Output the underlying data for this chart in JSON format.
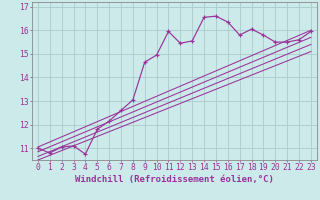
{
  "background_color": "#cceaea",
  "line_color": "#993399",
  "grid_color": "#aacccc",
  "xlabel": "Windchill (Refroidissement éolien,°C)",
  "xlabel_fontsize": 6.5,
  "tick_fontsize": 5.8,
  "xlim": [
    -0.5,
    23.5
  ],
  "ylim": [
    10.5,
    17.2
  ],
  "yticks": [
    11,
    12,
    13,
    14,
    15,
    16,
    17
  ],
  "xticks": [
    0,
    1,
    2,
    3,
    4,
    5,
    6,
    7,
    8,
    9,
    10,
    11,
    12,
    13,
    14,
    15,
    16,
    17,
    18,
    19,
    20,
    21,
    22,
    23
  ],
  "main_line_x": [
    0,
    1,
    2,
    3,
    4,
    5,
    6,
    7,
    8,
    9,
    10,
    11,
    12,
    13,
    14,
    15,
    16,
    17,
    18,
    19,
    20,
    21,
    22,
    23
  ],
  "main_line_y": [
    11.0,
    10.8,
    11.05,
    11.1,
    10.75,
    11.8,
    12.15,
    12.6,
    13.05,
    14.65,
    14.95,
    15.95,
    15.45,
    15.55,
    16.55,
    16.6,
    16.35,
    15.8,
    16.05,
    15.8,
    15.5,
    15.5,
    15.6,
    15.95
  ],
  "diag_lines": [
    {
      "x": [
        0,
        23
      ],
      "y": [
        11.05,
        16.0
      ]
    },
    {
      "x": [
        0,
        23
      ],
      "y": [
        10.85,
        15.7
      ]
    },
    {
      "x": [
        0,
        23
      ],
      "y": [
        10.65,
        15.4
      ]
    },
    {
      "x": [
        0,
        23
      ],
      "y": [
        10.5,
        15.1
      ]
    }
  ]
}
